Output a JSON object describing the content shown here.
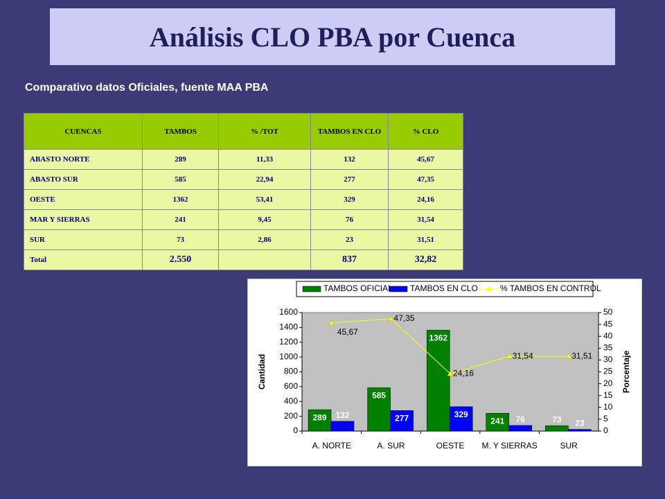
{
  "title": "Análisis CLO PBA por Cuenca",
  "subtitle": "Comparativo datos Oficiales, fuente MAA PBA",
  "table": {
    "headers": [
      "CUENCAS",
      "TAMBOS",
      "% /TOT",
      "TAMBOS EN CLO",
      "% CLO"
    ],
    "rows": [
      [
        "ABASTO NORTE",
        "289",
        "11,33",
        "132",
        "45,67"
      ],
      [
        "ABASTO SUR",
        "585",
        "22,94",
        "277",
        "47,35"
      ],
      [
        "OESTE",
        "1362",
        "53,41",
        "329",
        "24,16"
      ],
      [
        "MAR Y SIERRAS",
        "241",
        "9,45",
        "76",
        "31,54"
      ],
      [
        "SUR",
        "73",
        "2,86",
        "23",
        "31,51"
      ]
    ],
    "total": {
      "label": "Total",
      "tambos": "2.550",
      "tambos_clo": "837",
      "pct_clo": "32,82"
    }
  },
  "chart_data": {
    "type": "bar",
    "categories": [
      "A. NORTE",
      "A. SUR",
      "OESTE",
      "M. Y SIERRAS",
      "SUR"
    ],
    "y_label": "Cantidad",
    "y2_label": "Porcentaje",
    "ylim": [
      0,
      1600
    ],
    "yticks": [
      0,
      200,
      400,
      600,
      800,
      1000,
      1200,
      1400,
      1600
    ],
    "y2lim": [
      0,
      50
    ],
    "y2ticks": [
      0,
      5,
      10,
      15,
      20,
      25,
      30,
      35,
      40,
      45,
      50
    ],
    "legend": "top",
    "series": [
      {
        "name": "TAMBOS OFICIAL",
        "type": "bar",
        "color": "#008000",
        "values": [
          289,
          585,
          1362,
          241,
          73
        ]
      },
      {
        "name": "TAMBOS EN CLO",
        "type": "bar",
        "color": "#0000ff",
        "values": [
          132,
          277,
          329,
          76,
          23
        ]
      },
      {
        "name": "% TAMBOS EN CONTROL",
        "type": "line",
        "axis": "y2",
        "color": "#ffff00",
        "values": [
          45.67,
          47.35,
          24.16,
          31.54,
          31.51
        ],
        "value_labels": [
          "45,67",
          "47,35",
          "24,16",
          "31,54",
          "31,51"
        ]
      }
    ]
  }
}
